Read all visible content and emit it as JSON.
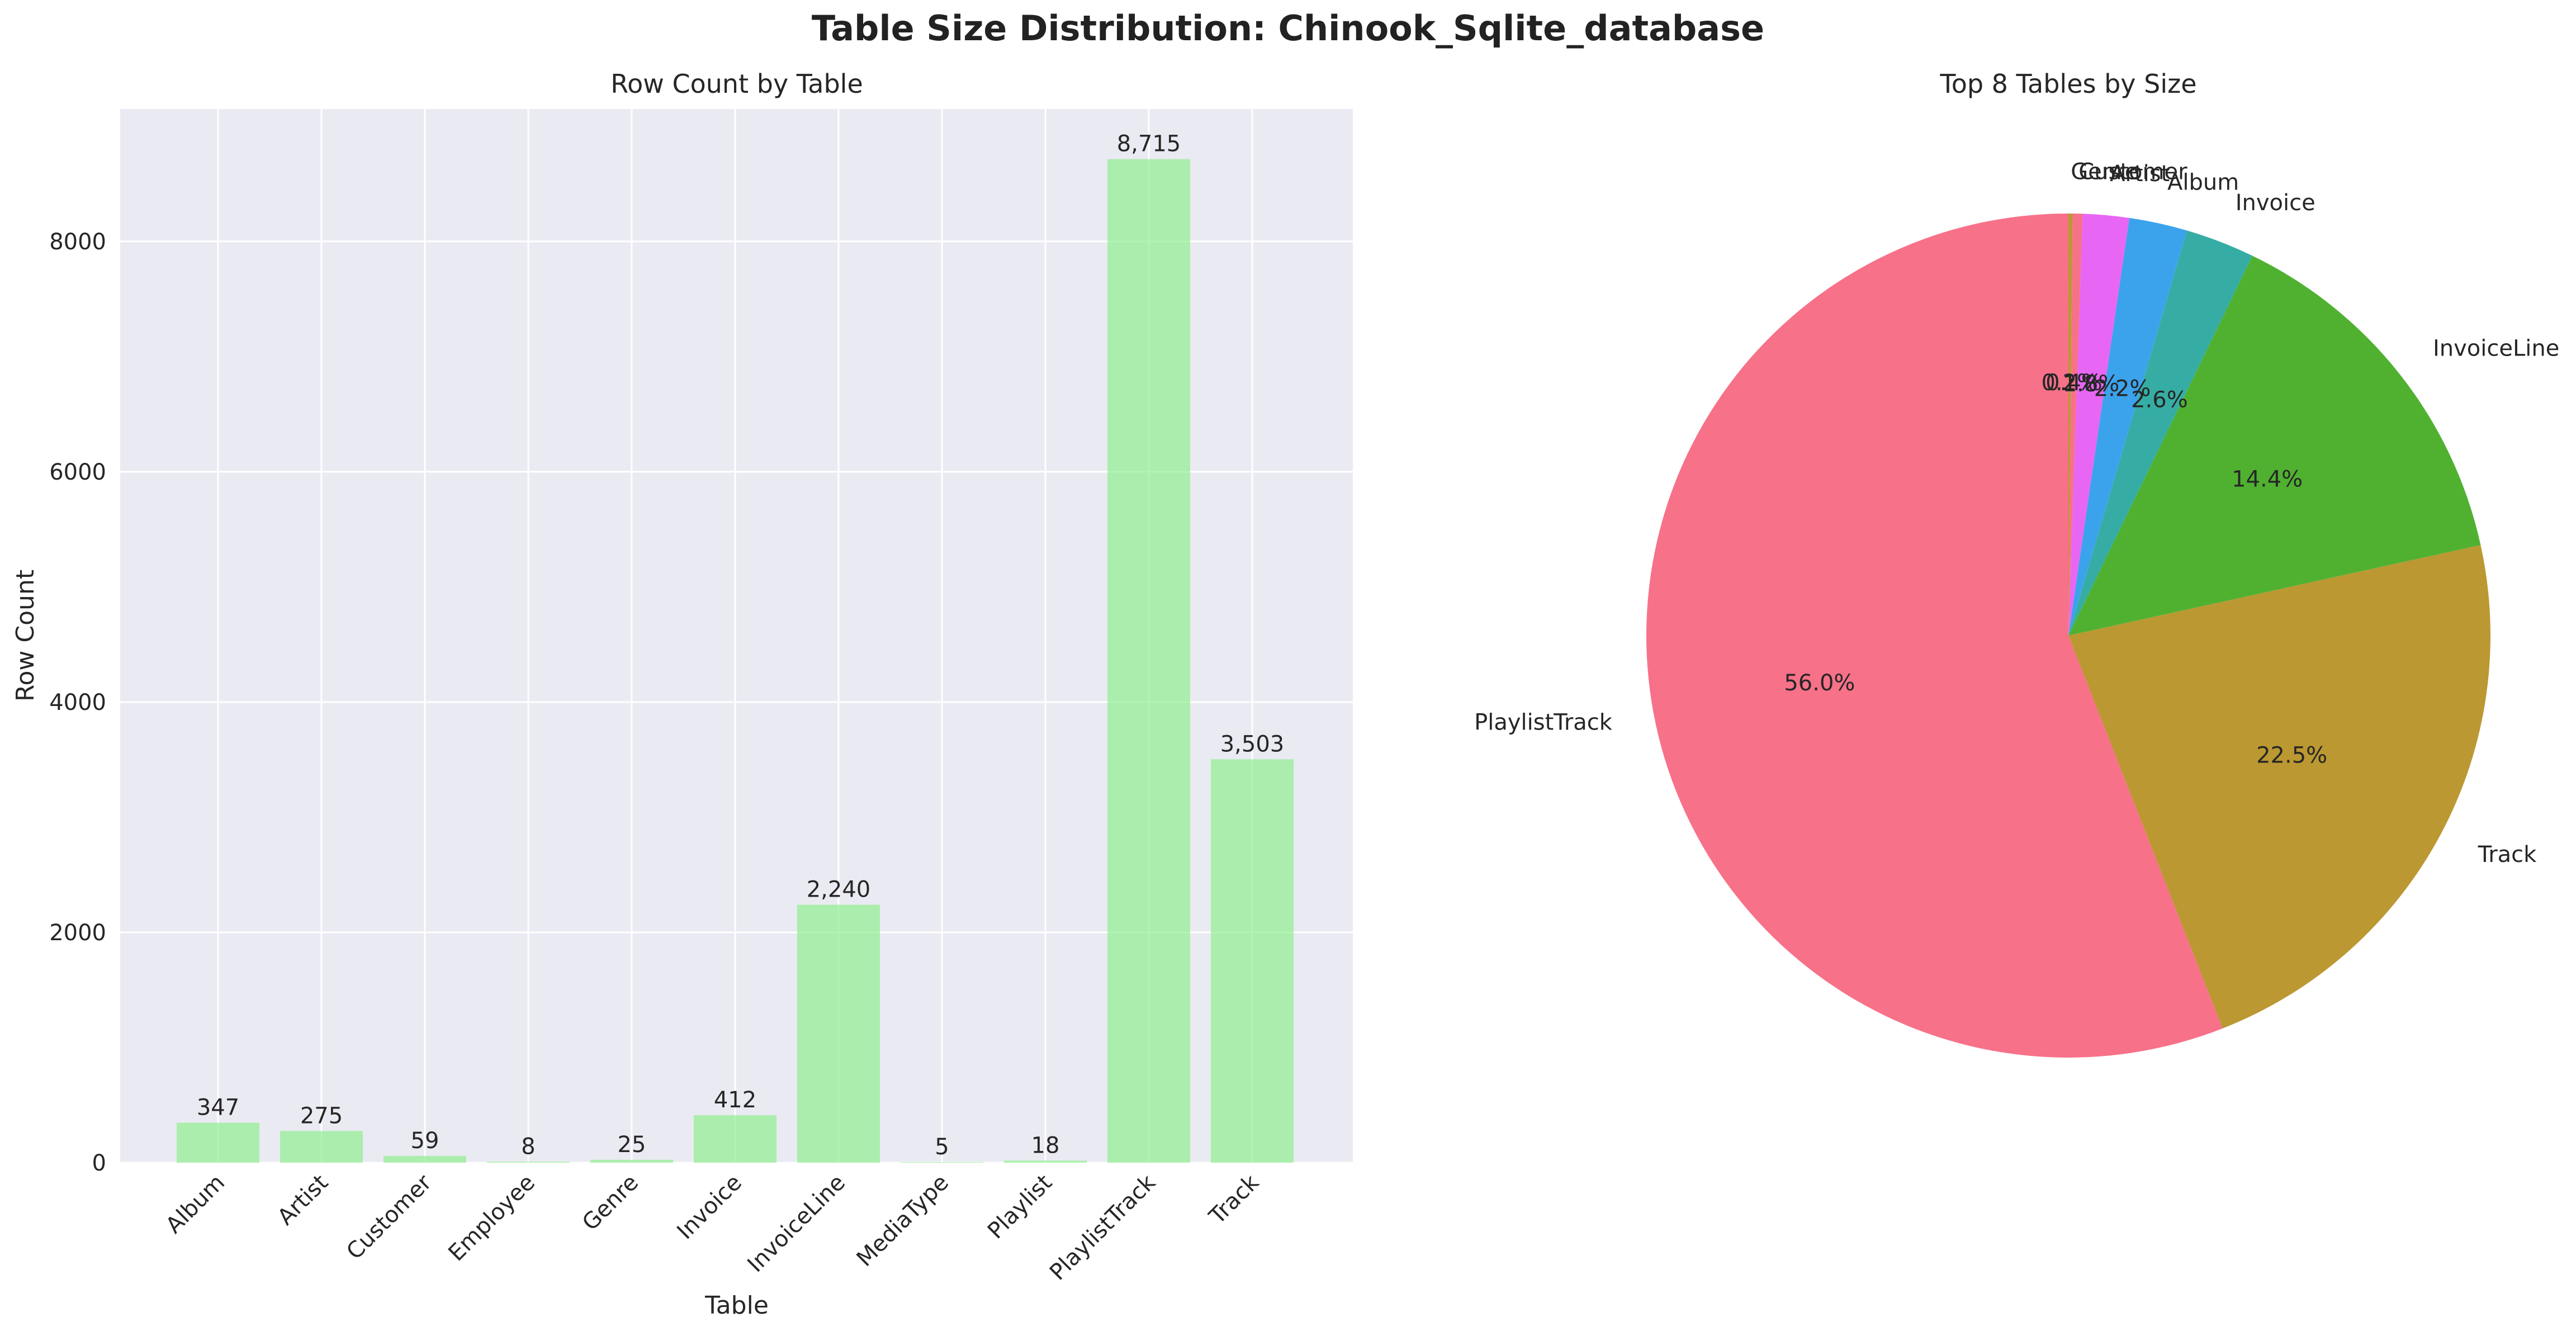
{
  "suptitle": "Table Size Distribution: Chinook_Sqlite_database",
  "chart_data": [
    {
      "type": "bar",
      "title": "Row Count by Table",
      "xlabel": "Table",
      "ylabel": "Row Count",
      "categories": [
        "Album",
        "Artist",
        "Customer",
        "Employee",
        "Genre",
        "Invoice",
        "InvoiceLine",
        "MediaType",
        "Playlist",
        "PlaylistTrack",
        "Track"
      ],
      "values": [
        347,
        275,
        59,
        8,
        25,
        412,
        2240,
        5,
        18,
        8715,
        3503
      ],
      "value_labels": [
        "347",
        "275",
        "59",
        "8",
        "25",
        "412",
        "2,240",
        "5",
        "18",
        "8,715",
        "3,503"
      ],
      "ylim": [
        0,
        9150
      ],
      "yticks": [
        0,
        2000,
        4000,
        6000,
        8000
      ],
      "ytick_labels": [
        "0",
        "2000",
        "4000",
        "6000",
        "8000"
      ],
      "grid": true,
      "bar_color": "#90ee90",
      "background": "#eaeaf2"
    },
    {
      "type": "pie",
      "title": "Top 8 Tables by Size",
      "start_angle": 90,
      "labels": [
        "PlaylistTrack",
        "Track",
        "InvoiceLine",
        "Invoice",
        "Album",
        "Artist",
        "Customer",
        "Genre"
      ],
      "values": [
        8715,
        3503,
        2240,
        412,
        347,
        275,
        59,
        25
      ],
      "percent_labels": [
        "56.0%",
        "22.5%",
        "14.4%",
        "2.6%",
        "2.2%",
        "1.8%",
        "0.4%",
        "0.2%"
      ],
      "colors": [
        "#f77189",
        "#bb9832",
        "#50b131",
        "#36ada4",
        "#3ba3ec",
        "#e866f4",
        "#f77189",
        "#bb9832"
      ]
    }
  ]
}
